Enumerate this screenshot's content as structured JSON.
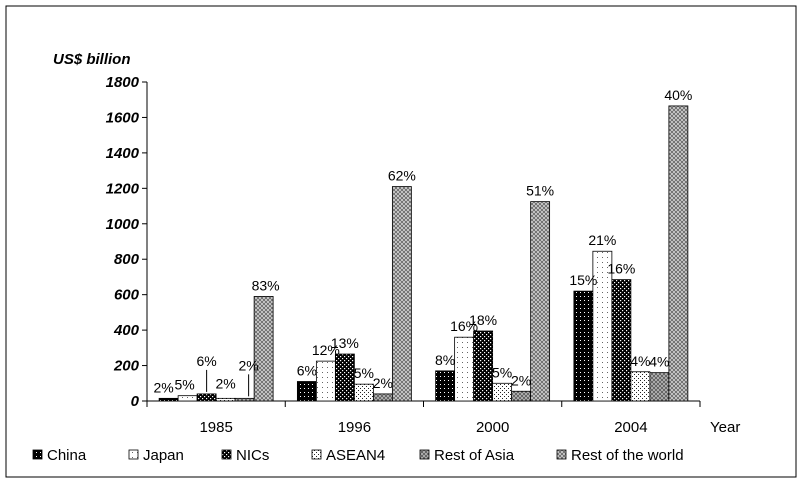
{
  "chart_data": {
    "type": "bar",
    "ylabel": "US$ billion",
    "xlabel": "Year",
    "ylim": [
      0,
      1800
    ],
    "yticks": [
      "0",
      "200",
      "400",
      "600",
      "800",
      "1000",
      "1200",
      "1400",
      "1600",
      "1800"
    ],
    "categories": [
      "1985",
      "1996",
      "2000",
      "2004"
    ],
    "legend_position": "bottom",
    "grid": false,
    "series": [
      {
        "name": "China",
        "pattern": "china",
        "values": [
          15,
          110,
          170,
          620
        ],
        "labels": [
          "2%",
          "6%",
          "8%",
          "15%"
        ]
      },
      {
        "name": "Japan",
        "pattern": "japan",
        "values": [
          30,
          225,
          360,
          845
        ],
        "labels": [
          "5%",
          "12%",
          "16%",
          "21%"
        ]
      },
      {
        "name": "NICs",
        "pattern": "nics",
        "values": [
          40,
          265,
          395,
          685
        ],
        "labels": [
          "6%",
          "13%",
          "18%",
          "16%"
        ]
      },
      {
        "name": "ASEAN4",
        "pattern": "asean",
        "values": [
          15,
          95,
          100,
          165
        ],
        "labels": [
          "2%",
          "5%",
          "5%",
          "4%"
        ]
      },
      {
        "name": "Rest of Asia",
        "pattern": "restasia",
        "values": [
          15,
          40,
          55,
          160
        ],
        "labels": [
          "2%",
          "2%",
          "2%",
          "4%"
        ]
      },
      {
        "name": "Rest of the world",
        "pattern": "restworld",
        "values": [
          590,
          1210,
          1125,
          1665
        ],
        "labels": [
          "83%",
          "62%",
          "51%",
          "40%"
        ]
      }
    ]
  }
}
